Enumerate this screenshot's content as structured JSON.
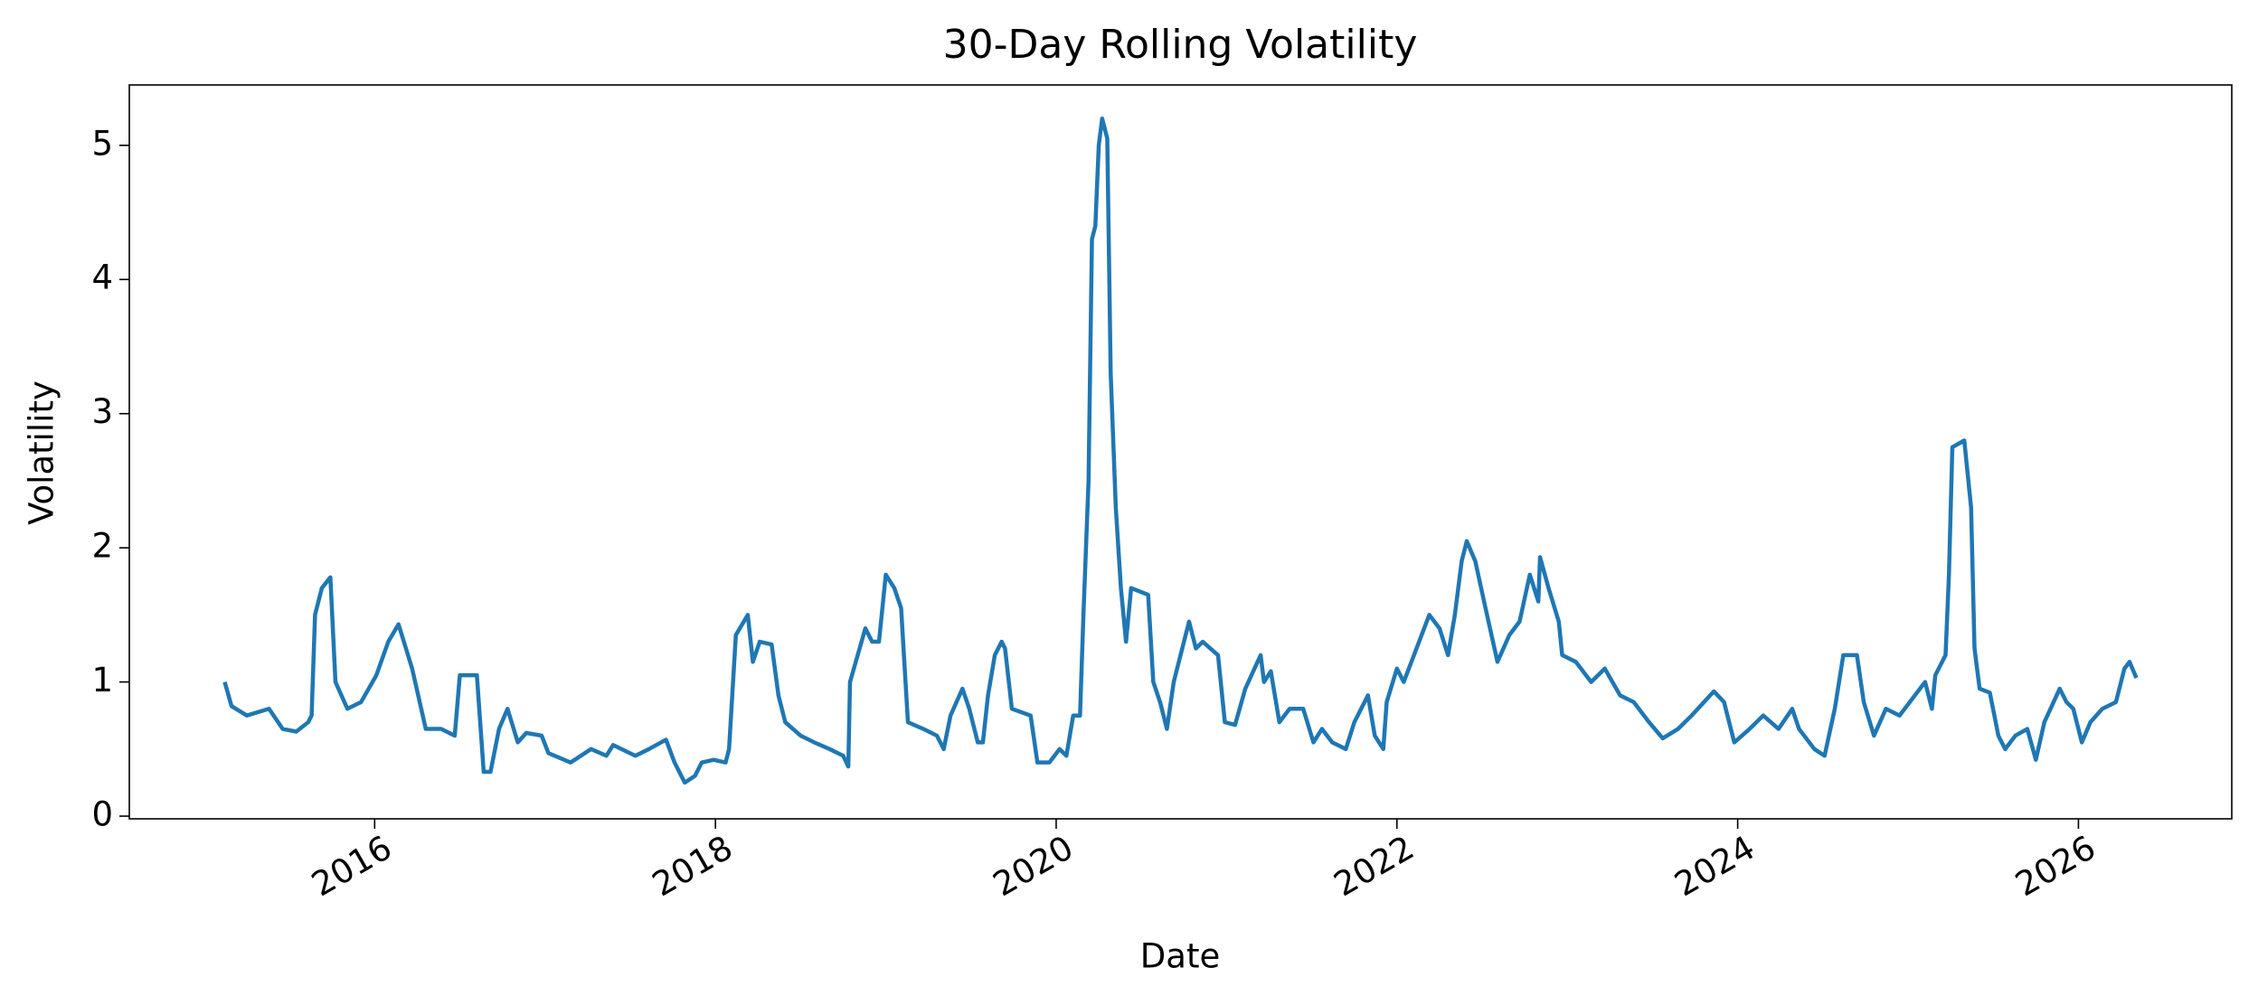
{
  "chart_data": {
    "type": "line",
    "title": "30-Day Rolling Volatility",
    "xlabel": "Date",
    "ylabel": "Volatility",
    "x": [
      2015.12,
      2015.16,
      2015.25,
      2015.38,
      2015.46,
      2015.54,
      2015.61,
      2015.63,
      2015.65,
      2015.69,
      2015.74,
      2015.77,
      2015.84,
      2015.92,
      2016.01,
      2016.08,
      2016.14,
      2016.22,
      2016.3,
      2016.39,
      2016.47,
      2016.5,
      2016.6,
      2016.64,
      2016.68,
      2016.73,
      2016.78,
      2016.84,
      2016.89,
      2016.98,
      2017.02,
      2017.15,
      2017.27,
      2017.36,
      2017.4,
      2017.53,
      2017.61,
      2017.71,
      2017.76,
      2017.82,
      2017.88,
      2017.92,
      2017.99,
      2018.06,
      2018.08,
      2018.12,
      2018.19,
      2018.22,
      2018.26,
      2018.33,
      2018.37,
      2018.41,
      2018.5,
      2018.58,
      2018.67,
      2018.75,
      2018.78,
      2018.79,
      2018.88,
      2018.92,
      2018.96,
      2019.0,
      2019.05,
      2019.09,
      2019.13,
      2019.22,
      2019.3,
      2019.34,
      2019.38,
      2019.45,
      2019.49,
      2019.54,
      2019.57,
      2019.6,
      2019.64,
      2019.68,
      2019.7,
      2019.74,
      2019.85,
      2019.89,
      2019.96,
      2020.02,
      2020.06,
      2020.1,
      2020.14,
      2020.16,
      2020.19,
      2020.21,
      2020.23,
      2020.25,
      2020.27,
      2020.3,
      2020.32,
      2020.35,
      2020.38,
      2020.41,
      2020.44,
      2020.54,
      2020.57,
      2020.61,
      2020.65,
      2020.69,
      2020.75,
      2020.78,
      2020.82,
      2020.86,
      2020.95,
      2020.99,
      2021.05,
      2021.11,
      2021.2,
      2021.22,
      2021.26,
      2021.31,
      2021.37,
      2021.45,
      2021.51,
      2021.56,
      2021.62,
      2021.7,
      2021.75,
      2021.83,
      2021.87,
      2021.92,
      2021.94,
      2022.0,
      2022.04,
      2022.1,
      2022.19,
      2022.25,
      2022.3,
      2022.34,
      2022.38,
      2022.41,
      2022.46,
      2022.52,
      2022.59,
      2022.66,
      2022.72,
      2022.78,
      2022.83,
      2022.84,
      2022.89,
      2022.95,
      2022.97,
      2023.05,
      2023.14,
      2023.22,
      2023.31,
      2023.39,
      2023.48,
      2023.56,
      2023.65,
      2023.73,
      2023.86,
      2023.92,
      2023.98,
      2024.07,
      2024.15,
      2024.24,
      2024.32,
      2024.36,
      2024.45,
      2024.51,
      2024.57,
      2024.62,
      2024.7,
      2024.74,
      2024.8,
      2024.87,
      2024.95,
      2025.04,
      2025.1,
      2025.14,
      2025.16,
      2025.22,
      2025.24,
      2025.26,
      2025.33,
      2025.37,
      2025.39,
      2025.42,
      2025.48,
      2025.53,
      2025.57,
      2025.63,
      2025.7,
      2025.75,
      2025.8,
      2025.89,
      2025.93,
      2025.97,
      2026.02,
      2026.07,
      2026.14,
      2026.22,
      2026.27,
      2026.3,
      2026.34
    ],
    "series": [
      {
        "name": "Volatility",
        "color": "#1f77b4",
        "values": [
          1.0,
          0.82,
          0.75,
          0.8,
          0.65,
          0.63,
          0.7,
          0.75,
          1.5,
          1.7,
          1.78,
          1.0,
          0.8,
          0.85,
          1.05,
          1.3,
          1.43,
          1.1,
          0.65,
          0.65,
          0.6,
          1.05,
          1.05,
          0.33,
          0.33,
          0.65,
          0.8,
          0.55,
          0.62,
          0.6,
          0.47,
          0.4,
          0.5,
          0.45,
          0.53,
          0.45,
          0.5,
          0.57,
          0.4,
          0.25,
          0.3,
          0.4,
          0.42,
          0.4,
          0.5,
          1.35,
          1.5,
          1.15,
          1.3,
          1.28,
          0.9,
          0.7,
          0.6,
          0.55,
          0.5,
          0.45,
          0.37,
          1.0,
          1.4,
          1.3,
          1.3,
          1.8,
          1.7,
          1.55,
          0.7,
          0.65,
          0.6,
          0.5,
          0.75,
          0.95,
          0.8,
          0.55,
          0.55,
          0.9,
          1.2,
          1.3,
          1.25,
          0.8,
          0.75,
          0.4,
          0.4,
          0.5,
          0.45,
          0.75,
          0.75,
          1.5,
          2.5,
          4.3,
          4.4,
          5.0,
          5.2,
          5.05,
          3.3,
          2.3,
          1.7,
          1.3,
          1.7,
          1.65,
          1.0,
          0.85,
          0.65,
          1.0,
          1.3,
          1.45,
          1.25,
          1.3,
          1.2,
          0.7,
          0.68,
          0.95,
          1.2,
          1.0,
          1.08,
          0.7,
          0.8,
          0.8,
          0.55,
          0.65,
          0.55,
          0.5,
          0.7,
          0.9,
          0.6,
          0.5,
          0.85,
          1.1,
          1.0,
          1.2,
          1.5,
          1.4,
          1.2,
          1.5,
          1.9,
          2.05,
          1.9,
          1.55,
          1.15,
          1.35,
          1.45,
          1.8,
          1.6,
          1.93,
          1.7,
          1.45,
          1.2,
          1.15,
          1.0,
          1.1,
          0.9,
          0.85,
          0.7,
          0.58,
          0.65,
          0.75,
          0.93,
          0.85,
          0.55,
          0.65,
          0.75,
          0.65,
          0.8,
          0.65,
          0.5,
          0.45,
          0.8,
          1.2,
          1.2,
          0.85,
          0.6,
          0.8,
          0.75,
          0.9,
          1.0,
          0.8,
          1.05,
          1.2,
          1.8,
          2.75,
          2.8,
          2.3,
          1.25,
          0.95,
          0.92,
          0.6,
          0.5,
          0.6,
          0.65,
          0.42,
          0.7,
          0.95,
          0.85,
          0.8,
          0.55,
          0.7,
          0.8,
          0.85,
          1.1,
          1.15,
          1.03
        ]
      }
    ],
    "xlim": [
      2014.56,
      2026.9
    ],
    "xticks": [
      2016,
      2018,
      2020,
      2022,
      2024,
      2026
    ],
    "ylim": [
      -0.02,
      5.45
    ],
    "yticks": [
      0,
      1,
      2,
      3,
      4,
      5
    ]
  }
}
